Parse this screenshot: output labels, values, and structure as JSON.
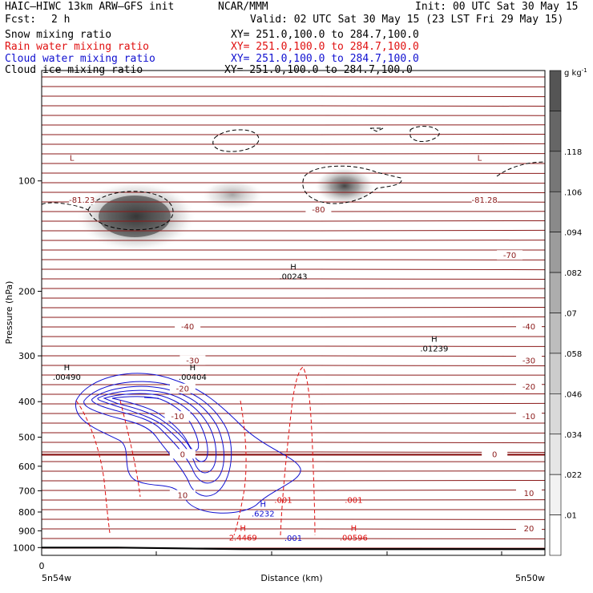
{
  "header": {
    "model": "HAIC–HIWC 13km ARW–GFS init",
    "org": "NCAR/MMM",
    "init": "Init: 00 UTC Sat 30 May 15",
    "fcst_label": "Fcst:",
    "fcst_value": "2 h",
    "valid": "Valid: 02 UTC Sat 30 May 15 (23 LST Fri 29 May 15)"
  },
  "fields": [
    {
      "name": "Snow mixing ratio",
      "xy": "XY= 251.0,100.0 to 284.7,100.0",
      "color": "#000000"
    },
    {
      "name": "Rain water mixing ratio",
      "xy": "XY= 251.0,100.0 to 284.7,100.0",
      "color": "#e01010"
    },
    {
      "name": "Cloud water mixing ratio",
      "xy": "XY= 251.0,100.0 to 284.7,100.0",
      "color": "#1010d0"
    },
    {
      "name": "Cloud ice mixing ratio",
      "xy": "XY= 251.0,100.0 to 284.7,100.0",
      "color": "#000000"
    }
  ],
  "chart_data": {
    "type": "heatmap",
    "ylabel": "Pressure (hPa)",
    "xlabel": "Distance (km)",
    "y_scale": "log",
    "ylim": [
      1050,
      50
    ],
    "y_ticks": [
      100,
      200,
      300,
      400,
      500,
      600,
      700,
      800,
      900,
      1000
    ],
    "x_tick_zero": "0",
    "x_left_label": "5n54w",
    "x_right_label": "5n50w",
    "colorbar": {
      "unit_label": "g kg",
      "unit_exp": "-1",
      "ticks": [
        ".01",
        ".022",
        ".034",
        ".046",
        ".058",
        ".07",
        ".082",
        ".094",
        ".106",
        ".118"
      ],
      "colors": [
        "#ffffff",
        "#f2f2f2",
        "#e6e6e6",
        "#d9d9d9",
        "#cccccc",
        "#bdbdbd",
        "#adadad",
        "#9c9c9c",
        "#8a8a8a",
        "#777777",
        "#666666",
        "#555555"
      ]
    },
    "temperature_labels": [
      {
        "x": 0.08,
        "p": 113,
        "text": "-81.23"
      },
      {
        "x": 0.88,
        "p": 113,
        "text": "-81.28"
      },
      {
        "x": 0.55,
        "p": 120,
        "text": "-80"
      },
      {
        "x": 0.93,
        "p": 160,
        "text": "-70"
      },
      {
        "x": 0.29,
        "p": 250,
        "text": "-40"
      },
      {
        "x": 0.97,
        "p": 250,
        "text": "-40"
      },
      {
        "x": 0.3,
        "p": 310,
        "text": "-30"
      },
      {
        "x": 0.98,
        "p": 310,
        "text": "-30"
      },
      {
        "x": 0.28,
        "p": 370,
        "text": "-20"
      },
      {
        "x": 1.0,
        "p": 365,
        "text": "-20"
      },
      {
        "x": 0.27,
        "p": 440,
        "text": "-10"
      },
      {
        "x": 1.02,
        "p": 440,
        "text": "-10"
      },
      {
        "x": 0.28,
        "p": 558,
        "text": "0"
      },
      {
        "x": 0.9,
        "p": 558,
        "text": "0"
      },
      {
        "x": 0.28,
        "p": 722,
        "text": "10"
      },
      {
        "x": 0.98,
        "p": 712,
        "text": "10"
      },
      {
        "x": 0.98,
        "p": 890,
        "text": "20"
      }
    ],
    "maxima": [
      {
        "x": 0.05,
        "p": 335,
        "h": "H",
        "value": ".00490",
        "color": "#000000"
      },
      {
        "x": 0.3,
        "p": 335,
        "h": "H",
        "value": ".00404",
        "color": "#000000"
      },
      {
        "x": 0.5,
        "p": 178,
        "h": "H",
        "value": ".00243",
        "color": "#000000"
      },
      {
        "x": 0.78,
        "p": 280,
        "h": "H",
        "value": ".01239",
        "color": "#000000"
      },
      {
        "x": 0.44,
        "p": 790,
        "h": "H",
        "value": ".6232",
        "color": "#1010d0"
      },
      {
        "x": 0.4,
        "p": 920,
        "h": "H",
        "value": "2.4469",
        "color": "#e01010"
      },
      {
        "x": 0.62,
        "p": 920,
        "h": "H",
        "value": ".00596",
        "color": "#e01010"
      }
    ],
    "extra_labels": [
      {
        "x": 0.48,
        "p": 755,
        "text": ".001",
        "color": "#e01010"
      },
      {
        "x": 0.62,
        "p": 755,
        "text": ".001",
        "color": "#e01010"
      },
      {
        "x": 0.5,
        "p": 960,
        "text": ".001",
        "color": "#1010d0"
      },
      {
        "x": 0.06,
        "p": 88,
        "text": "L",
        "color": "#8b1a1a"
      },
      {
        "x": 0.87,
        "p": 88,
        "text": "L",
        "color": "#8b1a1a"
      }
    ],
    "surface_pressure": {
      "x": [
        0,
        0.15,
        0.4,
        1.0
      ],
      "p": [
        1000,
        1000,
        1010,
        1010
      ]
    }
  }
}
